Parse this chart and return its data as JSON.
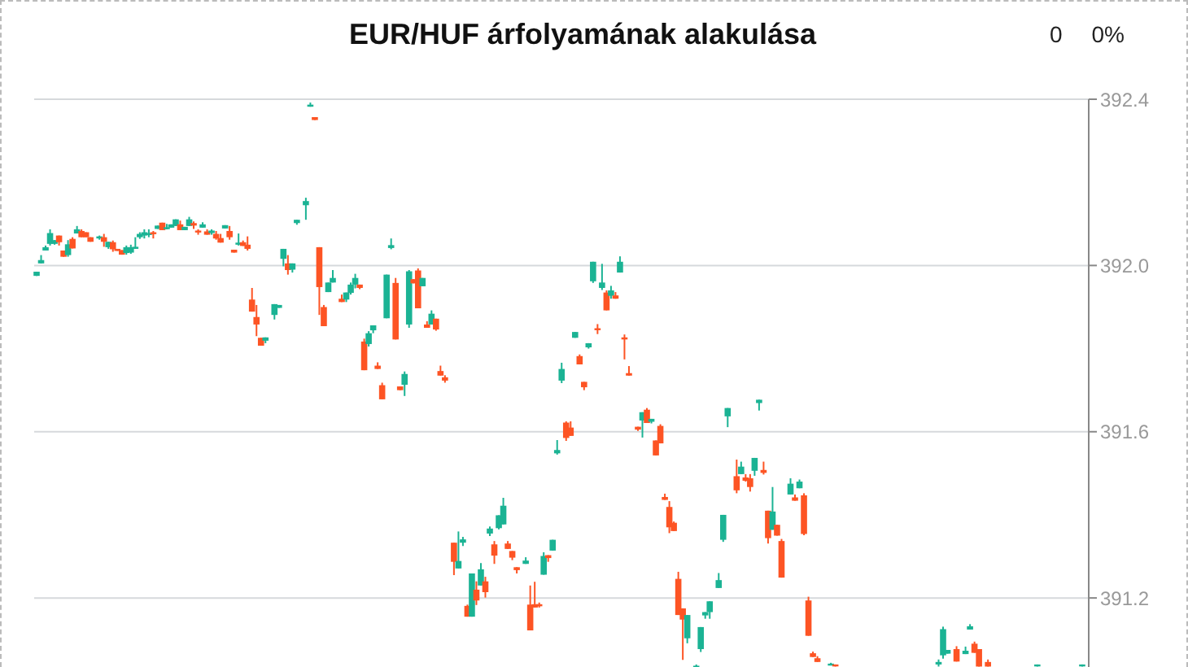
{
  "chart_data": {
    "type": "candlestick",
    "title": "EUR/HUF árfolyamának alakulása",
    "annotations": [
      "0",
      "0%"
    ],
    "categories": [
      null,
      null,
      null,
      null,
      null,
      null,
      null,
      null,
      null,
      null,
      null,
      null,
      null,
      null,
      null,
      null,
      null,
      null,
      null,
      null,
      null,
      null,
      null,
      null,
      null,
      null,
      null,
      null,
      null,
      null,
      null,
      null,
      null,
      null,
      null,
      null,
      null,
      null,
      null,
      null,
      null,
      null,
      null,
      null,
      null,
      null,
      null,
      null,
      null,
      null,
      null,
      null,
      null,
      null,
      null,
      null,
      null,
      null,
      null,
      null,
      null,
      null,
      null,
      null,
      null,
      null,
      null,
      null,
      null,
      null,
      null,
      null,
      null,
      null,
      null,
      null,
      null,
      null,
      null,
      null,
      null,
      null,
      null,
      null,
      null,
      null,
      null,
      null,
      null,
      null,
      null,
      null,
      null,
      null,
      null,
      null,
      null,
      null,
      null,
      null,
      null,
      null,
      null,
      null,
      null,
      null,
      null,
      null,
      null,
      null,
      null,
      null,
      null,
      null,
      null,
      null,
      null,
      null,
      null,
      null,
      null,
      null,
      null,
      null,
      null,
      null,
      null,
      null,
      null,
      null,
      null,
      null,
      null,
      null,
      null,
      null,
      null,
      null,
      null,
      null,
      null,
      null,
      null,
      null,
      null,
      null,
      null,
      null,
      null,
      null,
      null,
      null,
      null,
      null,
      null,
      null,
      null,
      null,
      null,
      null,
      null,
      null,
      null,
      null,
      null,
      null,
      null,
      null,
      null,
      null,
      null,
      null,
      null,
      null,
      null,
      null,
      null,
      null,
      null,
      null,
      null,
      null,
      null,
      null,
      null,
      null,
      null,
      null,
      null,
      null,
      null,
      null,
      null,
      null,
      null,
      null,
      null,
      null,
      null,
      null,
      null,
      null,
      null,
      null,
      null,
      null,
      null,
      null,
      null,
      null,
      null,
      null,
      null,
      null,
      null,
      null,
      null,
      null,
      null,
      null,
      null,
      null,
      null,
      null,
      null,
      null,
      null,
      null,
      null,
      null,
      null,
      null,
      null,
      null,
      null
    ],
    "ohlc": [
      [
        391.975,
        391.985,
        391.975,
        391.985
      ],
      [
        392.005,
        392.025,
        392.005,
        392.013
      ],
      [
        392.036,
        392.048,
        392.036,
        392.044
      ],
      [
        392.052,
        392.087,
        392.048,
        392.078
      ],
      [
        392.052,
        392.061,
        392.05,
        392.061
      ],
      [
        392.072,
        392.072,
        392.048,
        392.056
      ],
      [
        392.036,
        392.036,
        392.021,
        392.021
      ],
      [
        392.025,
        392.061,
        392.021,
        392.051
      ],
      [
        392.064,
        392.068,
        392.041,
        392.041
      ],
      [
        392.077,
        392.095,
        392.077,
        392.087
      ],
      [
        392.083,
        392.087,
        392.068,
        392.068
      ],
      [
        392.08,
        392.08,
        392.068,
        392.068
      ],
      [
        392.068,
        392.068,
        392.057,
        392.057
      ],
      null,
      [
        392.065,
        392.072,
        392.062,
        392.07
      ],
      [
        392.068,
        392.076,
        392.045,
        392.057
      ],
      [
        392.044,
        392.057,
        392.04,
        392.057
      ],
      [
        392.056,
        392.06,
        392.033,
        392.039
      ],
      [
        392.04,
        392.04,
        392.035,
        392.035
      ],
      [
        392.037,
        392.037,
        392.026,
        392.026
      ],
      [
        392.03,
        392.048,
        392.026,
        392.044
      ],
      [
        392.031,
        392.05,
        392.028,
        392.044
      ],
      [
        392.04,
        392.068,
        392.04,
        392.045
      ],
      [
        392.068,
        392.08,
        392.064,
        392.076
      ],
      [
        392.072,
        392.087,
        392.065,
        392.08
      ],
      [
        392.074,
        392.087,
        392.068,
        392.078
      ],
      [
        392.08,
        392.083,
        392.065,
        392.076
      ],
      [
        392.088,
        392.096,
        392.088,
        392.096
      ],
      [
        392.103,
        392.103,
        392.085,
        392.085
      ],
      [
        392.09,
        392.1,
        392.087,
        392.092
      ],
      [
        392.091,
        392.099,
        392.091,
        392.099
      ],
      [
        392.095,
        392.111,
        392.095,
        392.111
      ],
      [
        392.099,
        392.108,
        392.085,
        392.085
      ],
      [
        392.085,
        392.093,
        392.085,
        392.093
      ],
      [
        392.095,
        392.117,
        392.095,
        392.111
      ],
      [
        392.102,
        392.106,
        392.088,
        392.096
      ],
      [
        392.084,
        392.087,
        392.074,
        392.08
      ],
      [
        392.091,
        392.104,
        392.091,
        392.099
      ],
      [
        392.082,
        392.087,
        392.074,
        392.074
      ],
      [
        392.078,
        392.087,
        392.074,
        392.084
      ],
      [
        392.076,
        392.083,
        392.062,
        392.065
      ],
      [
        392.066,
        392.076,
        392.055,
        392.055
      ],
      [
        392.089,
        392.097,
        392.089,
        392.097
      ],
      [
        392.083,
        392.095,
        392.062,
        392.068
      ],
      [
        392.038,
        392.038,
        392.031,
        392.031
      ],
      [
        392.05,
        392.077,
        392.048,
        392.055
      ],
      [
        392.056,
        392.06,
        392.047,
        392.047
      ],
      [
        392.05,
        392.07,
        392.036,
        392.04
      ],
      [
        391.918,
        391.946,
        391.889,
        391.889
      ],
      [
        391.876,
        391.905,
        391.83,
        391.858
      ],
      [
        391.826,
        391.826,
        391.807,
        391.807
      ],
      [
        391.819,
        391.827,
        391.813,
        391.827
      ],
      null,
      [
        391.881,
        391.907,
        391.87,
        391.907
      ],
      [
        391.898,
        391.905,
        391.898,
        391.905
      ],
      [
        392.016,
        392.04,
        391.998,
        392.04
      ],
      [
        392.005,
        392.025,
        391.978,
        391.989
      ],
      [
        391.99,
        392.005,
        391.983,
        392.005
      ],
      [
        392.102,
        392.11,
        392.098,
        392.11
      ],
      null,
      [
        392.145,
        392.163,
        392.11,
        392.155
      ],
      [
        392.382,
        392.392,
        392.382,
        392.387
      ],
      [
        392.357,
        392.357,
        392.35,
        392.35
      ],
      [
        392.044,
        392.044,
        391.881,
        391.948
      ],
      [
        391.9,
        391.905,
        391.854,
        391.854
      ],
      [
        391.936,
        391.959,
        391.936,
        391.959
      ],
      [
        391.959,
        391.989,
        391.959,
        391.97
      ],
      null,
      [
        391.92,
        391.93,
        391.912,
        391.912
      ],
      [
        391.918,
        391.935,
        391.912,
        391.935
      ],
      [
        391.934,
        391.959,
        391.93,
        391.954
      ],
      [
        391.954,
        391.98,
        391.945,
        391.97
      ],
      [
        391.954,
        391.954,
        391.943,
        391.946
      ],
      [
        391.817,
        391.824,
        391.748,
        391.748
      ],
      [
        391.811,
        391.842,
        391.805,
        391.837
      ],
      [
        391.844,
        391.856,
        391.837,
        391.856
      ],
      [
        391.759,
        391.767,
        391.751,
        391.751
      ],
      [
        391.712,
        391.718,
        391.678,
        391.678
      ],
      [
        391.873,
        391.978,
        391.873,
        391.978
      ],
      [
        392.042,
        392.065,
        392.039,
        392.049
      ],
      [
        391.958,
        391.97,
        391.822,
        391.822
      ],
      [
        391.709,
        391.709,
        391.7,
        391.7
      ],
      [
        391.713,
        391.745,
        391.686,
        391.739
      ],
      [
        391.858,
        391.989,
        391.85,
        391.986
      ],
      [
        391.967,
        391.967,
        391.957,
        391.957
      ],
      [
        391.988,
        391.993,
        391.897,
        391.897
      ],
      [
        391.95,
        391.97,
        391.95,
        391.97
      ],
      [
        391.858,
        391.866,
        391.85,
        391.85
      ],
      [
        391.858,
        391.892,
        391.858,
        391.884
      ],
      [
        391.872,
        391.872,
        391.843,
        391.846
      ],
      [
        391.746,
        391.759,
        391.735,
        391.735
      ],
      [
        391.731,
        391.736,
        391.718,
        391.723
      ],
      null,
      [
        391.333,
        391.333,
        391.255,
        391.287
      ],
      [
        391.271,
        391.36,
        391.271,
        391.289
      ],
      [
        391.333,
        391.347,
        391.325,
        391.341
      ],
      [
        391.181,
        391.184,
        391.155,
        391.155
      ],
      [
        391.155,
        391.259,
        391.155,
        391.259
      ],
      [
        391.22,
        391.24,
        391.183,
        391.194
      ],
      [
        391.23,
        391.284,
        391.23,
        391.269
      ],
      [
        391.24,
        391.251,
        391.201,
        391.214
      ],
      [
        391.355,
        391.372,
        391.349,
        391.367
      ],
      [
        391.329,
        391.337,
        391.282,
        391.302
      ],
      [
        391.368,
        391.399,
        391.365,
        391.399
      ],
      [
        391.377,
        391.441,
        391.377,
        391.422
      ],
      [
        391.331,
        391.337,
        391.318,
        391.318
      ],
      [
        391.313,
        391.313,
        391.291,
        391.297
      ],
      [
        391.274,
        391.274,
        391.259,
        391.267
      ],
      null,
      [
        391.282,
        391.298,
        391.282,
        391.29
      ],
      [
        391.184,
        391.23,
        391.122,
        391.122
      ],
      [
        391.185,
        391.239,
        391.177,
        391.177
      ],
      [
        391.185,
        391.189,
        391.177,
        391.18
      ],
      [
        391.256,
        391.31,
        391.256,
        391.301
      ],
      [
        391.303,
        391.303,
        391.287,
        391.296
      ],
      [
        391.314,
        391.34,
        391.314,
        391.34
      ],
      [
        391.548,
        391.58,
        391.545,
        391.556
      ],
      [
        391.723,
        391.766,
        391.717,
        391.751
      ],
      [
        391.622,
        391.625,
        391.578,
        391.585
      ],
      [
        391.61,
        391.625,
        391.59,
        391.59
      ],
      [
        391.826,
        391.84,
        391.826,
        391.84
      ],
      [
        391.782,
        391.786,
        391.762,
        391.762
      ],
      [
        391.72,
        391.72,
        391.7,
        391.707
      ],
      [
        391.803,
        391.813,
        391.8,
        391.813
      ],
      [
        391.962,
        392.009,
        391.958,
        392.009
      ],
      [
        391.849,
        391.859,
        391.835,
        391.845
      ],
      [
        391.946,
        392.004,
        391.941,
        391.959
      ],
      [
        391.935,
        391.94,
        391.892,
        391.892
      ],
      [
        391.927,
        391.951,
        391.92,
        391.94
      ],
      [
        391.928,
        391.936,
        391.92,
        391.92
      ],
      [
        391.983,
        392.022,
        391.983,
        392.009
      ],
      [
        391.827,
        391.834,
        391.774,
        391.822
      ],
      [
        391.741,
        391.758,
        391.735,
        391.735
      ],
      null,
      [
        391.612,
        391.612,
        391.602,
        391.605
      ],
      [
        391.627,
        391.647,
        391.586,
        391.647
      ],
      [
        391.653,
        391.657,
        391.621,
        391.621
      ],
      [
        391.624,
        391.631,
        391.62,
        391.631
      ],
      [
        391.579,
        391.579,
        391.543,
        391.543
      ],
      [
        391.614,
        391.618,
        391.572,
        391.572
      ],
      [
        391.443,
        391.451,
        391.436,
        391.436
      ],
      [
        391.419,
        391.433,
        391.356,
        391.37
      ],
      [
        391.381,
        391.384,
        391.361,
        391.361
      ],
      [
        391.246,
        391.263,
        391.159,
        391.159
      ],
      [
        391.175,
        391.175,
        391.051,
        391.148
      ],
      [
        391.103,
        391.159,
        391.091,
        391.159
      ],
      null,
      [
        391.035,
        391.04,
        391.035,
        391.037
      ],
      [
        391.077,
        391.13,
        391.07,
        391.13
      ],
      [
        391.158,
        391.166,
        391.15,
        391.166
      ],
      [
        391.166,
        391.192,
        391.15,
        391.192
      ],
      null,
      [
        391.224,
        391.26,
        391.224,
        391.243
      ],
      [
        391.34,
        391.4,
        391.335,
        391.4
      ],
      [
        391.637,
        391.657,
        391.611,
        391.657
      ],
      null,
      [
        391.493,
        391.533,
        391.452,
        391.459
      ],
      [
        391.498,
        391.528,
        391.498,
        391.516
      ],
      [
        391.49,
        391.498,
        391.48,
        391.482
      ],
      [
        391.488,
        391.498,
        391.456,
        391.467
      ],
      [
        391.506,
        391.537,
        391.494,
        391.537
      ],
      [
        391.669,
        391.677,
        391.651,
        391.677
      ],
      [
        391.508,
        391.528,
        391.497,
        391.501
      ],
      [
        391.41,
        391.41,
        391.331,
        391.344
      ],
      [
        391.364,
        391.467,
        391.364,
        391.408
      ],
      [
        391.376,
        391.376,
        391.35,
        391.35
      ],
      [
        391.337,
        391.342,
        391.249,
        391.249
      ],
      null,
      [
        391.449,
        391.488,
        391.449,
        391.475
      ],
      [
        391.442,
        391.449,
        391.434,
        391.434
      ],
      [
        391.464,
        391.485,
        391.464,
        391.48
      ],
      [
        391.447,
        391.452,
        391.351,
        391.354
      ],
      [
        391.194,
        391.203,
        391.109,
        391.109
      ],
      [
        391.067,
        391.071,
        391.058,
        391.058
      ],
      [
        391.055,
        391.06,
        391.046,
        391.046
      ],
      null,
      null,
      [
        391.04,
        391.044,
        391.04,
        391.042
      ],
      [
        391.04,
        391.04,
        391.035,
        391.037
      ],
      null,
      null,
      null,
      null,
      null,
      null,
      null,
      null,
      null,
      null,
      null,
      null,
      null,
      null,
      null,
      null,
      null,
      null,
      null,
      null,
      null,
      null,
      [
        391.04,
        391.052,
        391.035,
        391.046
      ],
      [
        391.062,
        391.131,
        391.054,
        391.125
      ],
      [
        391.066,
        391.075,
        391.066,
        391.075
      ],
      null,
      [
        391.077,
        391.084,
        391.047,
        391.047
      ],
      null,
      [
        391.065,
        391.083,
        391.065,
        391.073
      ],
      [
        391.124,
        391.137,
        391.124,
        391.132
      ],
      [
        391.09,
        391.095,
        391.068,
        391.068
      ],
      [
        391.077,
        391.077,
        391.035,
        391.035
      ],
      null,
      [
        391.046,
        391.052,
        391.035,
        391.035
      ],
      null,
      null,
      null,
      null,
      null,
      null,
      null,
      null,
      null,
      null,
      [
        391.037,
        391.04,
        391.035,
        391.04
      ],
      null,
      null,
      null,
      null,
      null,
      null,
      null,
      null,
      null,
      [
        391.036,
        391.04,
        391.035,
        391.04
      ],
      null
    ],
    "colors": [
      "#1bb394",
      "#1bb394",
      "#1bb394",
      "#1bb394",
      "#1bb394",
      "#fd5424",
      "#fd5424",
      "#1bb394",
      "#fd5424",
      "#1bb394",
      "#fd5424",
      "#fd5424",
      "#fd5424",
      null,
      "#1bb394",
      "#fd5424",
      "#1bb394",
      "#fd5424",
      "#fd5424",
      "#fd5424",
      "#1bb394",
      "#1bb394",
      "#1bb394",
      "#1bb394",
      "#1bb394",
      "#1bb394",
      "#fd5424",
      "#1bb394",
      "#fd5424",
      "#1bb394",
      "#1bb394",
      "#1bb394",
      "#fd5424",
      "#1bb394",
      "#1bb394",
      "#fd5424",
      "#fd5424",
      "#1bb394",
      "#fd5424",
      "#1bb394",
      "#fd5424",
      "#fd5424",
      "#1bb394",
      "#fd5424",
      "#fd5424",
      "#1bb394",
      "#fd5424",
      "#fd5424",
      "#fd5424",
      "#fd5424",
      "#fd5424",
      "#1bb394",
      null,
      "#1bb394",
      "#1bb394",
      "#1bb394",
      "#fd5424",
      "#1bb394",
      "#1bb394",
      null,
      "#1bb394",
      "#1bb394",
      "#fd5424",
      "#fd5424",
      "#fd5424",
      "#1bb394",
      "#1bb394",
      null,
      "#fd5424",
      "#1bb394",
      "#1bb394",
      "#1bb394",
      "#fd5424",
      "#fd5424",
      "#1bb394",
      "#1bb394",
      "#fd5424",
      "#fd5424",
      "#1bb394",
      "#1bb394",
      "#fd5424",
      "#fd5424",
      "#1bb394",
      "#1bb394",
      "#fd5424",
      "#fd5424",
      "#1bb394",
      "#fd5424",
      "#1bb394",
      "#fd5424",
      "#fd5424",
      "#fd5424",
      null,
      "#fd5424",
      "#1bb394",
      "#1bb394",
      "#fd5424",
      "#1bb394",
      "#fd5424",
      "#1bb394",
      "#fd5424",
      "#1bb394",
      "#fd5424",
      "#1bb394",
      "#1bb394",
      "#fd5424",
      "#fd5424",
      "#fd5424",
      null,
      "#1bb394",
      "#fd5424",
      "#fd5424",
      "#fd5424",
      "#1bb394",
      "#fd5424",
      "#1bb394",
      "#1bb394",
      "#1bb394",
      "#fd5424",
      "#fd5424",
      "#1bb394",
      "#fd5424",
      "#fd5424",
      "#1bb394",
      "#1bb394",
      "#fd5424",
      "#1bb394",
      "#fd5424",
      "#1bb394",
      "#fd5424",
      "#1bb394",
      "#fd5424",
      "#fd5424",
      null,
      "#fd5424",
      "#1bb394",
      "#fd5424",
      "#1bb394",
      "#fd5424",
      "#fd5424",
      "#fd5424",
      "#fd5424",
      "#fd5424",
      "#fd5424",
      "#fd5424",
      "#1bb394",
      null,
      "#1bb394",
      "#1bb394",
      "#1bb394",
      "#1bb394",
      null,
      "#1bb394",
      "#1bb394",
      "#1bb394",
      null,
      "#fd5424",
      "#1bb394",
      "#fd5424",
      "#fd5424",
      "#1bb394",
      "#1bb394",
      "#fd5424",
      "#fd5424",
      "#1bb394",
      "#fd5424",
      "#fd5424",
      null,
      "#1bb394",
      "#fd5424",
      "#1bb394",
      "#fd5424",
      "#fd5424",
      "#fd5424",
      "#fd5424",
      null,
      null,
      "#1bb394",
      "#fd5424",
      null,
      null,
      null,
      null,
      null,
      null,
      null,
      null,
      null,
      null,
      null,
      null,
      null,
      null,
      null,
      null,
      null,
      null,
      null,
      null,
      null,
      null,
      "#1bb394",
      "#1bb394",
      "#1bb394",
      null,
      "#fd5424",
      null,
      "#1bb394",
      "#1bb394",
      "#fd5424",
      "#fd5424",
      null,
      "#fd5424",
      null,
      null,
      null,
      null,
      null,
      null,
      null,
      null,
      null,
      null,
      "#1bb394",
      null,
      null,
      null,
      null,
      null,
      null,
      null,
      null,
      null,
      "#1bb394",
      null
    ],
    "ylim": [
      391.03,
      392.4
    ],
    "yticks": [
      391.2,
      391.6,
      {
        "value": 392,
        "label": "392.0"
      },
      392.4
    ],
    "grid": "y",
    "tick_labels": "y"
  }
}
